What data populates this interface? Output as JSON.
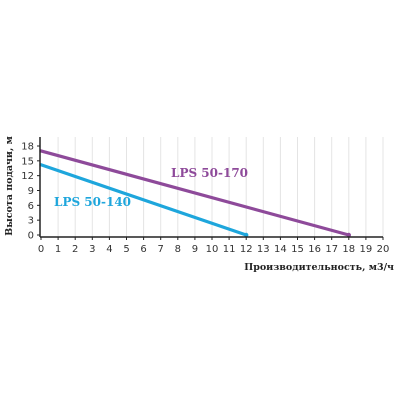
{
  "chart_data": {
    "type": "line",
    "xlabel": "Производительность, м3/ч",
    "ylabel": "Высота подачи, м",
    "xlim": [
      0,
      20
    ],
    "ylim": [
      0,
      19
    ],
    "x_ticks": [
      0,
      1,
      2,
      3,
      4,
      5,
      6,
      7,
      8,
      9,
      10,
      11,
      12,
      13,
      14,
      15,
      16,
      17,
      18,
      19,
      20
    ],
    "y_ticks": [
      0,
      3,
      6,
      9,
      12,
      15,
      18
    ],
    "grid": "vertical",
    "series": [
      {
        "name": "LPS 50-170",
        "color": "#8e4a9a",
        "points": [
          [
            0,
            17
          ],
          [
            18,
            0
          ]
        ]
      },
      {
        "name": "LPS 50-140",
        "color": "#1ea6dc",
        "points": [
          [
            0,
            14.2
          ],
          [
            12,
            0
          ]
        ]
      }
    ]
  }
}
